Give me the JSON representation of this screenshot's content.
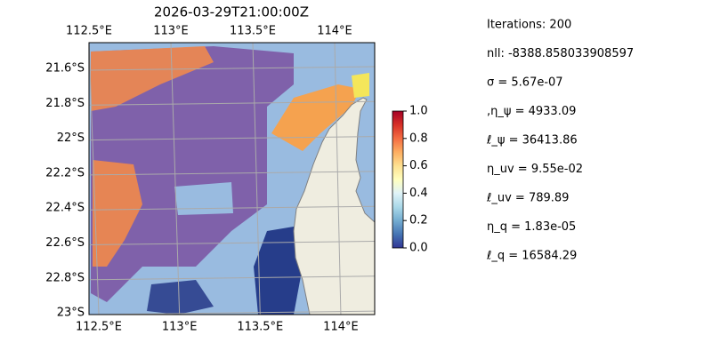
{
  "title": "2026-03-29T21:00:00Z",
  "map": {
    "xticks": [
      {
        "value": 112.5,
        "label": "112.5°E"
      },
      {
        "value": 113,
        "label": "113°E"
      },
      {
        "value": 113.5,
        "label": "113.5°E"
      },
      {
        "value": 114,
        "label": "114°E"
      }
    ],
    "yticks": [
      {
        "value": -21.6,
        "label": "21.6°S"
      },
      {
        "value": -21.8,
        "label": "21.8°S"
      },
      {
        "value": -22,
        "label": "22°S"
      },
      {
        "value": -22.2,
        "label": "22.2°S"
      },
      {
        "value": -22.4,
        "label": "22.4°S"
      },
      {
        "value": -22.6,
        "label": "22.6°S"
      },
      {
        "value": -22.8,
        "label": "22.8°S"
      },
      {
        "value": -23,
        "label": "23°S"
      }
    ],
    "ocean_color": "#99bbe0",
    "land_color": "#efede0"
  },
  "colorbar": {
    "lim": [
      0,
      1
    ],
    "ticks": [
      {
        "value": 0,
        "label": "0.0"
      },
      {
        "value": 0.2,
        "label": "0.2"
      },
      {
        "value": 0.4,
        "label": "0.4"
      },
      {
        "value": 0.6,
        "label": "0.6"
      },
      {
        "value": 0.8,
        "label": "0.8"
      },
      {
        "value": 1,
        "label": "1.0"
      }
    ],
    "colors": [
      "#313695",
      "#4575b4",
      "#74add1",
      "#abd9e9",
      "#e0f3f8",
      "#ffffbf",
      "#fee090",
      "#fdae61",
      "#f46d43",
      "#d73027",
      "#a50026"
    ]
  },
  "text_panel": {
    "lines": [
      "Iterations: 200",
      "nll: -8388.858033908597",
      "σ = 5.67e-07",
      ",η_ψ = 4933.09",
      "ℓ_ψ = 36413.86",
      "η_uv = 9.55e-02",
      "ℓ_uv = 789.89",
      "η_q = 1.83e-05",
      "ℓ_q = 16584.29"
    ]
  }
}
